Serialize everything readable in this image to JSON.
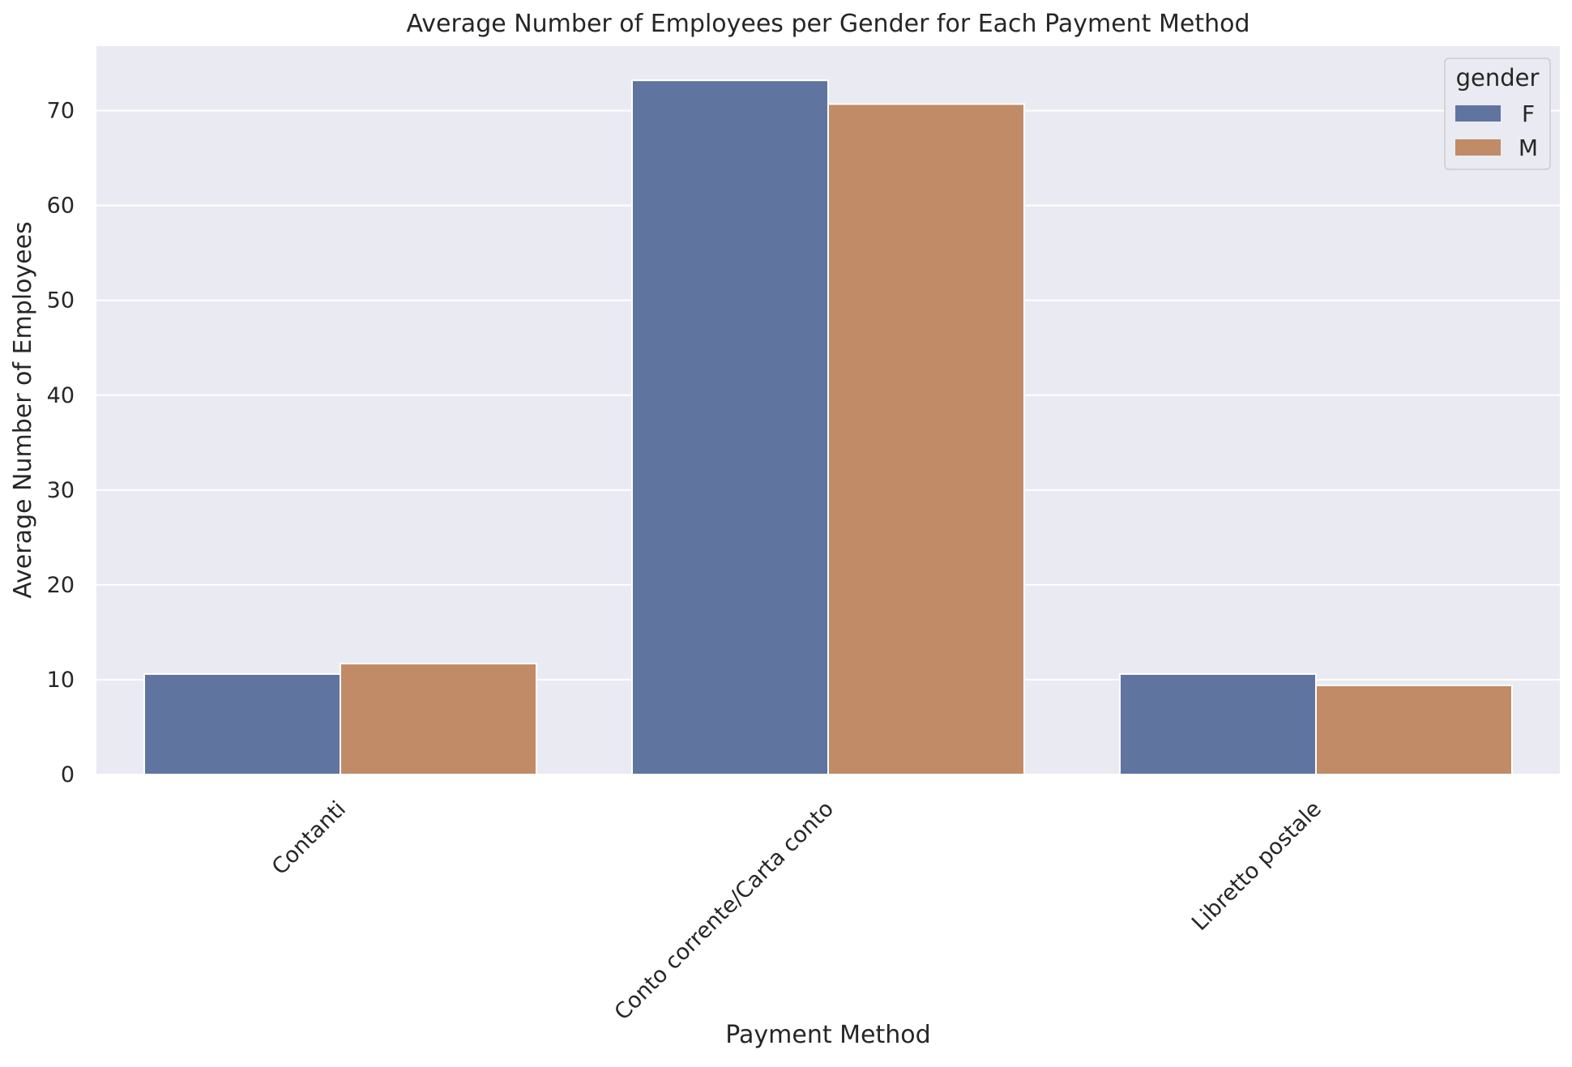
{
  "chart_data": {
    "type": "bar",
    "title": "Average Number of Employees per Gender for Each Payment Method",
    "xlabel": "Payment Method",
    "ylabel": "Average Number of Employees",
    "categories": [
      "Contanti",
      "Conto corrente/Carta conto",
      "Libretto postale"
    ],
    "series": [
      {
        "name": "F",
        "color": "#6074a0",
        "values": [
          10.6,
          73.2,
          10.6
        ]
      },
      {
        "name": "M",
        "color": "#c18b67",
        "values": [
          11.7,
          70.7,
          9.4
        ]
      }
    ],
    "ylim": [
      0,
      76.8
    ],
    "yticks": [
      0,
      10,
      20,
      30,
      40,
      50,
      60,
      70
    ],
    "legend_title": "gender",
    "legend_position": "top-right",
    "grid": true,
    "plot_background": "#eaeaf2",
    "grid_color": "#ffffff"
  }
}
